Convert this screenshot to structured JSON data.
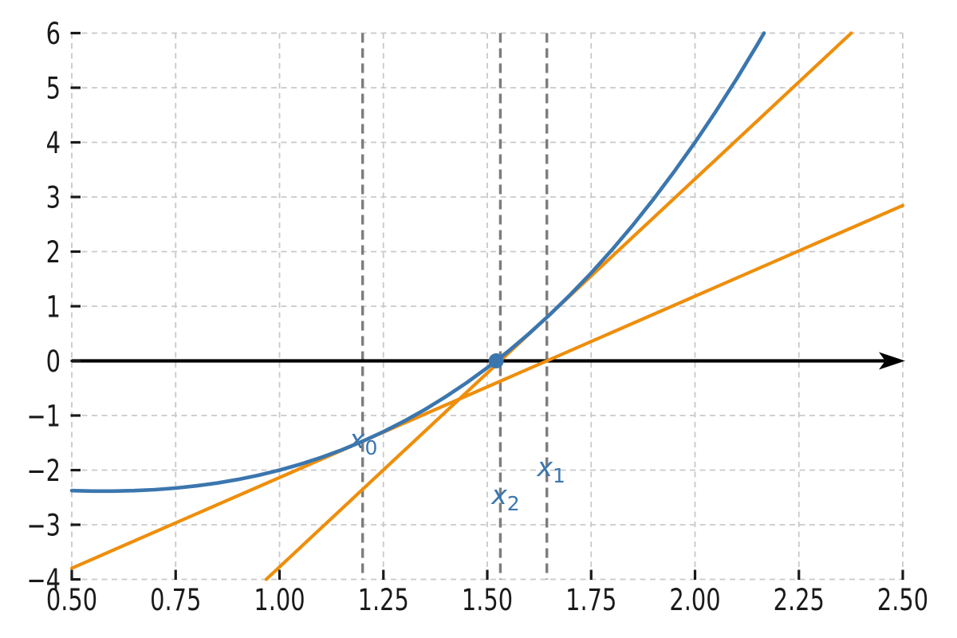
{
  "chart_data": {
    "type": "line",
    "title": "",
    "xlabel": "",
    "ylabel": "",
    "xlim": [
      0.5,
      2.5
    ],
    "ylim": [
      -4,
      6
    ],
    "grid": true,
    "legend": false,
    "x_ticks": [
      {
        "value": 0.5,
        "label": "0.50"
      },
      {
        "value": 0.75,
        "label": "0.75"
      },
      {
        "value": 1.0,
        "label": "1.00"
      },
      {
        "value": 1.25,
        "label": "1.25"
      },
      {
        "value": 1.5,
        "label": "1.50"
      },
      {
        "value": 1.75,
        "label": "1.75"
      },
      {
        "value": 2.0,
        "label": "2.00"
      },
      {
        "value": 2.25,
        "label": "2.25"
      },
      {
        "value": 2.5,
        "label": "2.50"
      }
    ],
    "y_ticks": [
      {
        "value": 6,
        "label": "6"
      },
      {
        "value": 5,
        "label": "5"
      },
      {
        "value": 4,
        "label": "4"
      },
      {
        "value": 3,
        "label": "3"
      },
      {
        "value": 2,
        "label": "2"
      },
      {
        "value": 1,
        "label": "1"
      },
      {
        "value": 0,
        "label": "0"
      },
      {
        "value": -1,
        "label": "−1"
      },
      {
        "value": -2,
        "label": "−2"
      },
      {
        "value": -3,
        "label": "−3"
      },
      {
        "value": -4,
        "label": "−4"
      }
    ],
    "series": [
      {
        "name": "function-curve",
        "color": "#3b76ae",
        "width": 4.6,
        "points": [
          [
            0.5,
            -2.375
          ],
          [
            0.55,
            -2.384
          ],
          [
            0.6,
            -2.384
          ],
          [
            0.65,
            -2.375
          ],
          [
            0.7,
            -2.357
          ],
          [
            0.75,
            -2.328
          ],
          [
            0.8,
            -2.288
          ],
          [
            0.85,
            -2.236
          ],
          [
            0.9,
            -2.171
          ],
          [
            0.95,
            -2.093
          ],
          [
            1.0,
            -2.0
          ],
          [
            1.05,
            -1.892
          ],
          [
            1.1,
            -1.769
          ],
          [
            1.15,
            -1.629
          ],
          [
            1.2,
            -1.472
          ],
          [
            1.25,
            -1.297
          ],
          [
            1.3,
            -1.103
          ],
          [
            1.35,
            -0.89
          ],
          [
            1.4,
            -0.656
          ],
          [
            1.45,
            -0.401
          ],
          [
            1.5,
            -0.125
          ],
          [
            1.55,
            0.174
          ],
          [
            1.6,
            0.496
          ],
          [
            1.65,
            0.842
          ],
          [
            1.7,
            1.213
          ],
          [
            1.75,
            1.609
          ],
          [
            1.8,
            2.032
          ],
          [
            1.85,
            2.482
          ],
          [
            1.9,
            2.959
          ],
          [
            1.95,
            3.465
          ],
          [
            2.0,
            4.0
          ],
          [
            2.05,
            4.565
          ],
          [
            2.1,
            5.161
          ],
          [
            2.15,
            5.788
          ],
          [
            2.166,
            6.0
          ]
        ]
      },
      {
        "name": "tangent-line-1",
        "color": "#ee8e0b",
        "width": 4.2,
        "points": [
          [
            0.5,
            -3.796
          ],
          [
            2.5,
            2.844
          ]
        ]
      },
      {
        "name": "tangent-line-2",
        "color": "#ee8e0b",
        "width": 4.2,
        "points": [
          [
            0.968,
            -4.0
          ],
          [
            2.376,
            6.0
          ]
        ]
      }
    ],
    "x_axis_line": {
      "y": 0,
      "color": "#000000",
      "width": 4.2,
      "arrow": true
    },
    "newton_iterations": [
      {
        "name": "x0",
        "x": 1.2,
        "label_main": "x",
        "label_sub": "0",
        "label_at": [
          1.168,
          -1.6
        ]
      },
      {
        "name": "x1",
        "x": 1.6434,
        "label_main": "x",
        "label_sub": "1",
        "label_at": [
          1.62,
          -2.11
        ]
      },
      {
        "name": "x2",
        "x": 1.5315,
        "label_main": "x",
        "label_sub": "2",
        "label_at": [
          1.51,
          -2.62
        ]
      }
    ],
    "root_marker": {
      "x": 1.5214,
      "y": 0,
      "radius": 9.5,
      "color": "#3b76ae"
    },
    "styles": {
      "grid_color": "#c9c9c9",
      "vline_color": "#7d7d7d",
      "iter_label_color": "#3b76ae",
      "tick_color": "#1a1a1a",
      "tick_label_color": "#1a1a1a",
      "background": "#ffffff"
    }
  }
}
